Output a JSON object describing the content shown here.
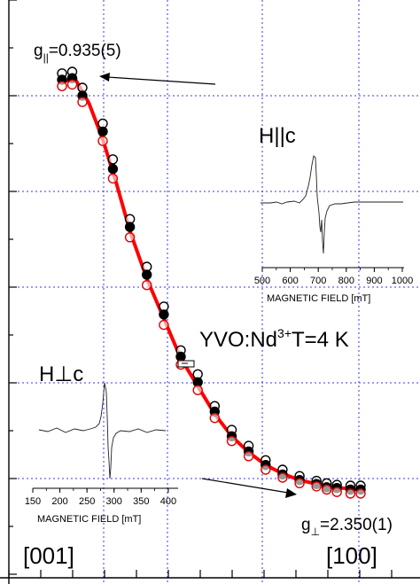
{
  "chart_data": {
    "type": "scatter",
    "annotations": {
      "g_parallel": "g||=0.935(5)",
      "g_perp": "g⊥=2.350(1)",
      "sample": "YVO:Nd3+T=4 K",
      "dir_start": "[001]",
      "dir_end": "[100]"
    },
    "main_plot": {
      "grid": true,
      "x_range": [
        0,
        90
      ],
      "y_range": [
        0,
        6
      ],
      "series": [
        {
          "marker": "open-black-circle",
          "color": "#000000",
          "points": [
            [
              0,
              5.18
            ],
            [
              3,
              5.2
            ],
            [
              6,
              5.0
            ],
            [
              12,
              4.55
            ],
            [
              15,
              4.1
            ],
            [
              20,
              3.35
            ],
            [
              25,
              2.75
            ],
            [
              30,
              2.25
            ],
            [
              35,
              1.7
            ],
            [
              40,
              1.4
            ],
            [
              45,
              1.0
            ],
            [
              50,
              0.7
            ],
            [
              55,
              0.5
            ],
            [
              60,
              0.32
            ],
            [
              65,
              0.2
            ],
            [
              70,
              0.12
            ],
            [
              75,
              0.06
            ],
            [
              78,
              0.03
            ],
            [
              81,
              0.01
            ],
            [
              85,
              0.0
            ],
            [
              88,
              0.0
            ]
          ]
        },
        {
          "marker": "filled-black-circle",
          "color": "#000000",
          "points": [
            [
              0,
              5.1
            ],
            [
              3,
              5.12
            ],
            [
              6,
              4.9
            ],
            [
              12,
              4.45
            ],
            [
              15,
              3.98
            ],
            [
              20,
              3.25
            ],
            [
              25,
              2.65
            ],
            [
              30,
              2.15
            ],
            [
              35,
              1.62
            ],
            [
              40,
              1.3
            ],
            [
              45,
              0.93
            ],
            [
              50,
              0.62
            ],
            [
              55,
              0.43
            ],
            [
              60,
              0.26
            ],
            [
              65,
              0.14
            ],
            [
              70,
              0.07
            ],
            [
              75,
              0.02
            ],
            [
              78,
              -0.02
            ],
            [
              81,
              -0.03
            ],
            [
              85,
              -0.05
            ],
            [
              88,
              -0.05
            ]
          ]
        },
        {
          "marker": "open-red-circle",
          "color": "#e00000",
          "points": [
            [
              0,
              5.02
            ],
            [
              3,
              5.04
            ],
            [
              6,
              4.82
            ],
            [
              12,
              4.33
            ],
            [
              15,
              3.86
            ],
            [
              20,
              3.12
            ],
            [
              25,
              2.52
            ],
            [
              30,
              2.02
            ],
            [
              35,
              1.52
            ],
            [
              40,
              1.2
            ],
            [
              45,
              0.85
            ],
            [
              50,
              0.56
            ],
            [
              55,
              0.37
            ],
            [
              60,
              0.2
            ],
            [
              65,
              0.1
            ],
            [
              70,
              0.03
            ],
            [
              75,
              -0.01
            ],
            [
              78,
              -0.05
            ],
            [
              81,
              -0.08
            ],
            [
              85,
              -0.1
            ],
            [
              88,
              -0.1
            ]
          ]
        },
        {
          "type": "line",
          "color": "#ff0000",
          "points": [
            [
              0,
              5.08
            ],
            [
              4,
              5.1
            ],
            [
              8,
              4.8
            ],
            [
              12,
              4.35
            ],
            [
              16,
              3.8
            ],
            [
              20,
              3.2
            ],
            [
              25,
              2.6
            ],
            [
              30,
              2.1
            ],
            [
              35,
              1.6
            ],
            [
              40,
              1.25
            ],
            [
              45,
              0.9
            ],
            [
              50,
              0.62
            ],
            [
              55,
              0.42
            ],
            [
              60,
              0.26
            ],
            [
              65,
              0.15
            ],
            [
              70,
              0.07
            ],
            [
              75,
              0.02
            ],
            [
              80,
              -0.02
            ],
            [
              85,
              -0.04
            ],
            [
              88,
              -0.05
            ]
          ]
        }
      ]
    },
    "inset_right": {
      "title": "H||c",
      "xlabel": "MAGNETIC FIELD [mT]",
      "xticks": [
        500,
        600,
        700,
        800,
        900,
        1000
      ],
      "x_range": [
        500,
        1000
      ]
    },
    "inset_left": {
      "title": "H⊥c",
      "xlabel": "MAGNETIC FIELD [mT]",
      "xticks": [
        150,
        200,
        250,
        300,
        350,
        400
      ],
      "x_range": [
        150,
        410
      ]
    }
  }
}
